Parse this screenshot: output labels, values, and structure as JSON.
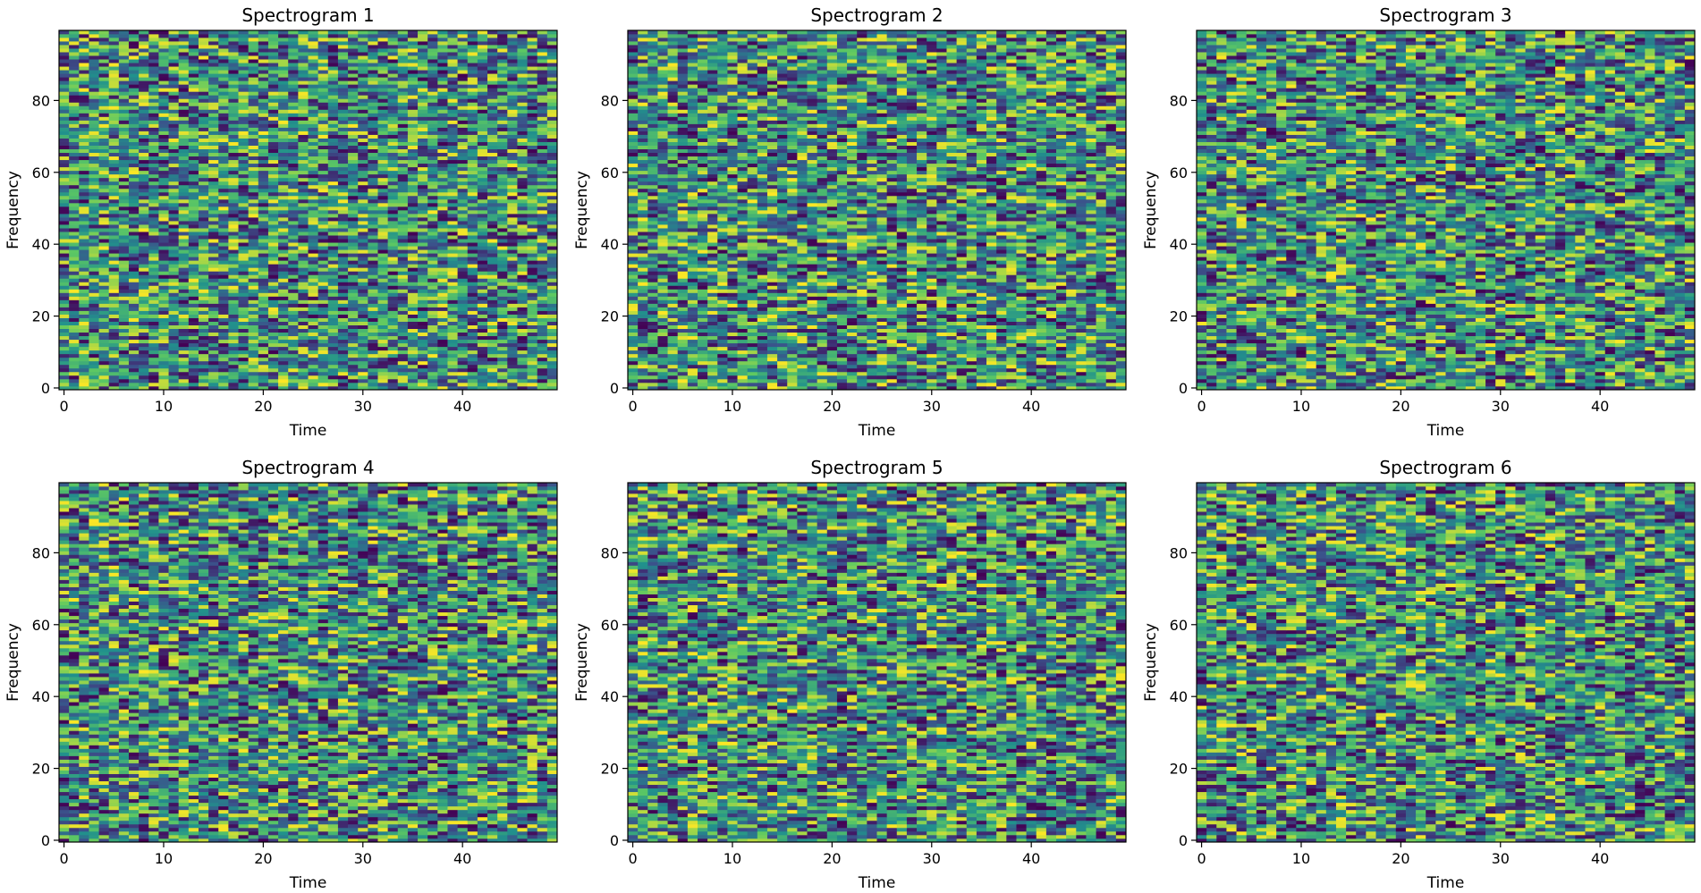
{
  "chart_data": [
    {
      "type": "heatmap",
      "title": "Spectrogram 1",
      "xlabel": "Time",
      "ylabel": "Frequency",
      "xlim": [
        -0.5,
        49.5
      ],
      "ylim": [
        -0.5,
        99.5
      ],
      "xticks": [
        0,
        10,
        20,
        30,
        40
      ],
      "yticks": [
        0,
        20,
        40,
        60,
        80
      ],
      "shape": [
        100,
        50
      ],
      "colormap": "viridis",
      "values": "uniform random values 0–1",
      "seed": 1
    },
    {
      "type": "heatmap",
      "title": "Spectrogram 2",
      "xlabel": "Time",
      "ylabel": "Frequency",
      "xlim": [
        -0.5,
        49.5
      ],
      "ylim": [
        -0.5,
        99.5
      ],
      "xticks": [
        0,
        10,
        20,
        30,
        40
      ],
      "yticks": [
        0,
        20,
        40,
        60,
        80
      ],
      "shape": [
        100,
        50
      ],
      "colormap": "viridis",
      "values": "uniform random values 0–1",
      "seed": 2
    },
    {
      "type": "heatmap",
      "title": "Spectrogram 3",
      "xlabel": "Time",
      "ylabel": "Frequency",
      "xlim": [
        -0.5,
        49.5
      ],
      "ylim": [
        -0.5,
        99.5
      ],
      "xticks": [
        0,
        10,
        20,
        30,
        40
      ],
      "yticks": [
        0,
        20,
        40,
        60,
        80
      ],
      "shape": [
        100,
        50
      ],
      "colormap": "viridis",
      "values": "uniform random values 0–1",
      "seed": 3
    },
    {
      "type": "heatmap",
      "title": "Spectrogram 4",
      "xlabel": "Time",
      "ylabel": "Frequency",
      "xlim": [
        -0.5,
        49.5
      ],
      "ylim": [
        -0.5,
        99.5
      ],
      "xticks": [
        0,
        10,
        20,
        30,
        40
      ],
      "yticks": [
        0,
        20,
        40,
        60,
        80
      ],
      "shape": [
        100,
        50
      ],
      "colormap": "viridis",
      "values": "uniform random values 0–1",
      "seed": 4
    },
    {
      "type": "heatmap",
      "title": "Spectrogram 5",
      "xlabel": "Time",
      "ylabel": "Frequency",
      "xlim": [
        -0.5,
        49.5
      ],
      "ylim": [
        -0.5,
        99.5
      ],
      "xticks": [
        0,
        10,
        20,
        30,
        40
      ],
      "yticks": [
        0,
        20,
        40,
        60,
        80
      ],
      "shape": [
        100,
        50
      ],
      "colormap": "viridis",
      "values": "uniform random values 0–1",
      "seed": 5
    },
    {
      "type": "heatmap",
      "title": "Spectrogram 6",
      "xlabel": "Time",
      "ylabel": "Frequency",
      "xlim": [
        -0.5,
        49.5
      ],
      "ylim": [
        -0.5,
        99.5
      ],
      "xticks": [
        0,
        10,
        20,
        30,
        40
      ],
      "yticks": [
        0,
        20,
        40,
        60,
        80
      ],
      "shape": [
        100,
        50
      ],
      "colormap": "viridis",
      "values": "uniform random values 0–1",
      "seed": 6
    }
  ],
  "colors": {
    "viridis_stops": [
      "#440154",
      "#3b528b",
      "#21918c",
      "#5ec962",
      "#fde725"
    ]
  }
}
